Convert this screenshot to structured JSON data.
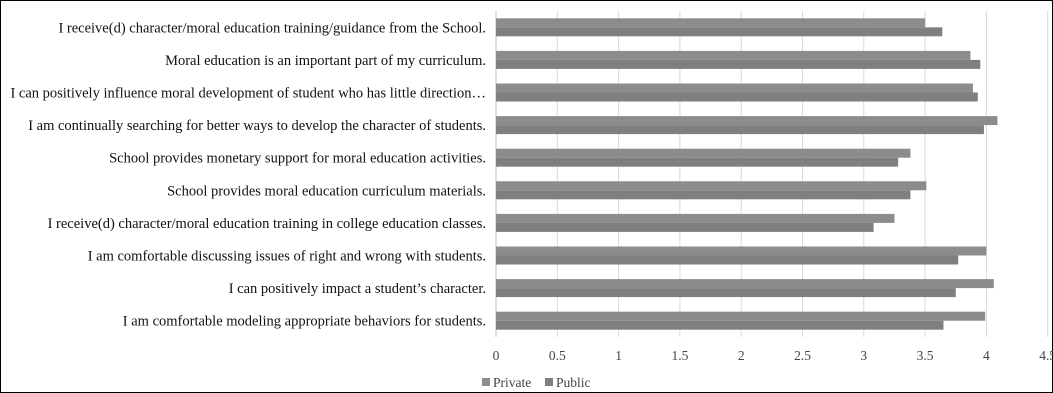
{
  "chart_data": {
    "type": "bar",
    "orientation": "horizontal",
    "categories": [
      "I receive(d) character/moral education training/guidance from the School.",
      "Moral education is an important part of my curriculum.",
      "I can positively influence moral development of student who has little direction…",
      "I am continually searching for better ways to develop the character of students.",
      "School provides monetary support for moral education activities.",
      "School provides moral education curriculum materials.",
      "I receive(d) character/moral education training in college education classes.",
      "I am comfortable discussing issues of right and wrong with students.",
      "I can positively impact a student’s character.",
      "I am comfortable modeling appropriate behaviors for students."
    ],
    "series": [
      {
        "name": "Private",
        "color": "#8c8c8c",
        "values": [
          3.5,
          3.87,
          3.89,
          4.09,
          3.38,
          3.51,
          3.25,
          4.0,
          4.06,
          3.99
        ]
      },
      {
        "name": "Public",
        "color": "#7f7f7f",
        "values": [
          3.64,
          3.95,
          3.93,
          3.98,
          3.28,
          3.38,
          3.08,
          3.77,
          3.75,
          3.65
        ]
      }
    ],
    "xticks": [
      "0",
      "0.5",
      "1",
      "1.5",
      "2",
      "2.5",
      "3",
      "3.5",
      "4",
      "4.5"
    ],
    "xlim": [
      0,
      4.5
    ],
    "grid": true,
    "legend": "bottom-center",
    "title": "",
    "xlabel": "",
    "ylabel": ""
  }
}
